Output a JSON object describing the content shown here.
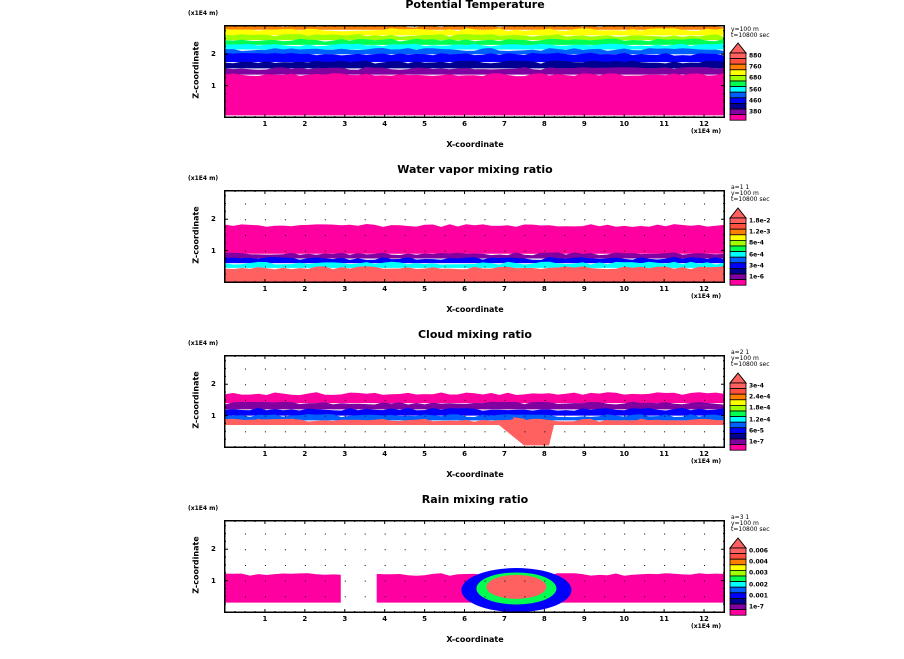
{
  "colors": {
    "palette": [
      "#ff00a0",
      "#8000a0",
      "#000090",
      "#0000ff",
      "#0060ff",
      "#00ffff",
      "#00ff50",
      "#a0ff00",
      "#ffff00",
      "#ff8000",
      "#ff5040",
      "#ff6060"
    ],
    "arrow": "#ff6060",
    "missing": "#ffffff"
  },
  "chart_data": [
    {
      "type": "heatmap",
      "title": "Potential Temperature",
      "xlabel": "X-coordinate",
      "ylabel": "Z-coordinate",
      "x_unit": "(x1E4 m)",
      "z_unit": "(x1E4 m)",
      "x_ticks": [
        "1",
        "2",
        "3",
        "4",
        "5",
        "6",
        "7",
        "8",
        "9",
        "10",
        "11",
        "12"
      ],
      "z_ticks": [
        "1",
        "2"
      ],
      "xlim": [
        0,
        12.5
      ],
      "zlim": [
        0,
        2.9
      ],
      "info_lines": [
        "y=100 m",
        "t=10800 sec"
      ],
      "colorbar_labels": [
        "880",
        "760",
        "680",
        "560",
        "460",
        "380"
      ],
      "layers": [
        {
          "z_top": 2.9,
          "z_bot": 2.78,
          "level": 9
        },
        {
          "z_top": 2.78,
          "z_bot": 2.6,
          "level": 8
        },
        {
          "z_top": 2.6,
          "z_bot": 2.45,
          "level": 7
        },
        {
          "z_top": 2.45,
          "z_bot": 2.3,
          "level": 6
        },
        {
          "z_top": 2.3,
          "z_bot": 2.15,
          "level": 5
        },
        {
          "z_top": 2.15,
          "z_bot": 2.0,
          "level": 4
        },
        {
          "z_top": 2.0,
          "z_bot": 1.75,
          "level": 3
        },
        {
          "z_top": 1.75,
          "z_bot": 1.55,
          "level": 2
        },
        {
          "z_top": 1.55,
          "z_bot": 1.35,
          "level": 1
        },
        {
          "z_top": 1.35,
          "z_bot": 0.05,
          "level": 0
        }
      ]
    },
    {
      "type": "heatmap",
      "title": "Water vapor mixing ratio",
      "xlabel": "X-coordinate",
      "ylabel": "Z-coordinate",
      "x_unit": "(x1E4 m)",
      "z_unit": "(x1E4 m)",
      "x_ticks": [
        "1",
        "2",
        "3",
        "4",
        "5",
        "6",
        "7",
        "8",
        "9",
        "10",
        "11",
        "12"
      ],
      "z_ticks": [
        "1",
        "2"
      ],
      "xlim": [
        0,
        12.5
      ],
      "zlim": [
        0,
        2.9
      ],
      "info_lines": [
        "a=1 1",
        "y=100 m",
        "t=10800 sec"
      ],
      "colorbar_labels": [
        "1.8e-2",
        "1.2e-3",
        "8e-4",
        "6e-4",
        "3e-4",
        "1e-6"
      ],
      "layers": [
        {
          "z_top": 1.8,
          "z_bot": 0.9,
          "level": 0
        },
        {
          "z_top": 0.9,
          "z_bot": 0.75,
          "level": 1
        },
        {
          "z_top": 0.75,
          "z_bot": 0.6,
          "level": 3
        },
        {
          "z_top": 0.6,
          "z_bot": 0.45,
          "level": 5
        },
        {
          "z_top": 0.45,
          "z_bot": 0.0,
          "level": 11
        }
      ]
    },
    {
      "type": "heatmap",
      "title": "Cloud mixing ratio",
      "xlabel": "X-coordinate",
      "ylabel": "Z-coordinate",
      "x_unit": "(x1E4 m)",
      "z_unit": "(x1E4 m)",
      "x_ticks": [
        "1",
        "2",
        "3",
        "4",
        "5",
        "6",
        "7",
        "8",
        "9",
        "10",
        "11",
        "12"
      ],
      "z_ticks": [
        "1",
        "2"
      ],
      "xlim": [
        0,
        12.5
      ],
      "zlim": [
        0,
        2.9
      ],
      "info_lines": [
        "a=2 1",
        "y=100 m",
        "t=10800 sec"
      ],
      "colorbar_labels": [
        "3e-4",
        "2.4e-4",
        "1.8e-4",
        "1.2e-4",
        "6e-5",
        "1e-7"
      ],
      "layers": [
        {
          "z_top": 1.7,
          "z_bot": 1.4,
          "level": 0
        },
        {
          "z_top": 1.4,
          "z_bot": 1.2,
          "level": 1
        },
        {
          "z_top": 1.2,
          "z_bot": 1.0,
          "level": 3
        },
        {
          "z_top": 1.0,
          "z_bot": 0.85,
          "level": 4
        },
        {
          "z_top": 0.85,
          "z_bot": 0.7,
          "level": 11
        }
      ]
    },
    {
      "type": "heatmap",
      "title": "Rain mixing ratio",
      "xlabel": "X-coordinate",
      "ylabel": "Z-coordinate",
      "x_unit": "(x1E4 m)",
      "z_unit": "(x1E4 m)",
      "x_ticks": [
        "1",
        "2",
        "3",
        "4",
        "5",
        "6",
        "7",
        "8",
        "9",
        "10",
        "11",
        "12"
      ],
      "z_ticks": [
        "1",
        "2"
      ],
      "xlim": [
        0,
        12.5
      ],
      "zlim": [
        0,
        2.9
      ],
      "info_lines": [
        "a=3 1",
        "y=100 m",
        "t=10800 sec"
      ],
      "colorbar_labels": [
        "0.006",
        "0.004",
        "0.003",
        "0.002",
        "0.001",
        "1e-7"
      ],
      "layers": [
        {
          "z_top": 1.2,
          "z_bot": 0.3,
          "level": 0
        }
      ]
    }
  ]
}
